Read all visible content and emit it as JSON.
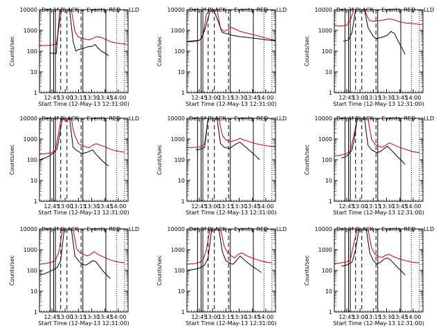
{
  "figure": {
    "x_tick_labels": [
      "12:45",
      "13:00",
      "13:15",
      "13:30",
      "13:45",
      "14:00"
    ],
    "y_tick_labels": [
      "1",
      "10",
      "100",
      "1000",
      "10000"
    ]
  },
  "chart_data": [
    {
      "type": "line",
      "title": "Det 1f BLACK = Events, RED = LLD",
      "xlabel": "Start Time (12-May-13 12:31:00)",
      "ylabel": "Counts/sec",
      "y_scale": "log",
      "ylim": [
        1,
        10000
      ],
      "xlim_minutes_after_start": [
        0,
        100
      ],
      "grid": false,
      "series": [
        {
          "name": "Events",
          "color": "#000000",
          "x": [
            12,
            19,
            23,
            26,
            28,
            30,
            34,
            38,
            41,
            44,
            48,
            52,
            56,
            58,
            60,
            63,
            65,
            67,
            70,
            72,
            75,
            78
          ],
          "y": [
            80,
            78,
            10000,
            10000,
            10000,
            10000,
            10000,
            300,
            100,
            120,
            130,
            150,
            170,
            165,
            180,
            210,
            160,
            130,
            100,
            90,
            75,
            60
          ]
        },
        {
          "name": "LLD",
          "color": "#cc0000",
          "x": [
            0,
            10,
            19,
            20,
            25,
            27,
            29,
            32,
            36,
            40,
            44,
            48,
            52,
            56,
            60,
            64,
            68,
            72,
            76,
            80,
            86,
            92,
            98
          ],
          "y": [
            180,
            190,
            210,
            400,
            10000,
            10000,
            10000,
            10000,
            10000,
            900,
            480,
            420,
            380,
            350,
            400,
            500,
            480,
            420,
            350,
            290,
            250,
            230,
            220
          ]
        }
      ]
    },
    {
      "type": "line",
      "title": "Det 2f BLACK = Events, RED = LLD",
      "xlabel": "Start Time (12-May-13 12:31:00)",
      "ylabel": "Counts/sec",
      "y_scale": "log",
      "ylim": [
        1,
        10000
      ],
      "xlim_minutes_after_start": [
        0,
        100
      ],
      "grid": false,
      "series": [
        {
          "name": "Events",
          "color": "#000000",
          "x": [
            0,
            10,
            14,
            16,
            20,
            26,
            30,
            35,
            40,
            50,
            60,
            70,
            80,
            90,
            100
          ],
          "y": [
            300,
            320,
            340,
            400,
            1000,
            8000,
            10000,
            3000,
            800,
            600,
            500,
            450,
            400,
            350,
            320
          ]
        },
        {
          "name": "LLD",
          "color": "#cc0000",
          "x": [
            0,
            10,
            14,
            18,
            22,
            26,
            30,
            34,
            38,
            42,
            46,
            50,
            54,
            60,
            70,
            80,
            90,
            100
          ],
          "y": [
            280,
            300,
            330,
            500,
            6000,
            10000,
            10000,
            10000,
            1200,
            900,
            1100,
            1400,
            1200,
            900,
            700,
            550,
            420,
            330
          ]
        }
      ]
    },
    {
      "type": "line",
      "title": "Det 3f BLACK = Events, RED = LLD",
      "xlabel": "Start Time (12-May-13 12:31:00)",
      "ylabel": "Counts/sec",
      "y_scale": "log",
      "ylim": [
        1,
        10000
      ],
      "xlim_minutes_after_start": [
        0,
        100
      ],
      "grid": false,
      "series": [
        {
          "name": "Events",
          "color": "#000000",
          "x": [
            10,
            16,
            20,
            24,
            26,
            30,
            34,
            38,
            40,
            44,
            48,
            52,
            56,
            60,
            64,
            68,
            72,
            76,
            80
          ],
          "y": [
            300,
            350,
            800,
            10000,
            10000,
            10000,
            10000,
            1400,
            1000,
            500,
            400,
            450,
            500,
            600,
            900,
            700,
            300,
            150,
            70
          ]
        },
        {
          "name": "LLD",
          "color": "#cc0000",
          "x": [
            0,
            8,
            14,
            18,
            22,
            26,
            30,
            34,
            38,
            40,
            44,
            50,
            56,
            62,
            68,
            74,
            80,
            90,
            98
          ],
          "y": [
            1700,
            1600,
            1800,
            3000,
            10000,
            10000,
            10000,
            10000,
            4000,
            3000,
            2800,
            2900,
            3200,
            3600,
            3200,
            2600,
            2300,
            2100,
            1900
          ]
        }
      ]
    },
    {
      "type": "line",
      "title": "Det 4f BLACK = Events, RED = LLD",
      "xlabel": "Start Time (12-May-13 12:31:00)",
      "ylabel": "Counts/sec",
      "y_scale": "log",
      "ylim": [
        1,
        10000
      ],
      "xlim_minutes_after_start": [
        0,
        100
      ],
      "grid": false,
      "series": [
        {
          "name": "Events",
          "color": "#000000",
          "x": [
            0,
            6,
            12,
            16,
            18,
            20,
            26,
            30,
            34,
            38,
            42,
            48,
            54,
            60,
            64,
            68,
            72,
            78
          ],
          "y": [
            100,
            120,
            160,
            220,
            260,
            350,
            10000,
            10000,
            10000,
            400,
            280,
            200,
            230,
            300,
            180,
            120,
            80,
            50
          ]
        },
        {
          "name": "LLD",
          "color": "#cc0000",
          "x": [
            0,
            8,
            14,
            18,
            22,
            24,
            26,
            28,
            30,
            32,
            34,
            36,
            38,
            40,
            44,
            48,
            52,
            56,
            60,
            64,
            68,
            74,
            80,
            88,
            96
          ],
          "y": [
            180,
            200,
            220,
            280,
            2500,
            8000,
            10000,
            9000,
            7000,
            8000,
            10000,
            10000,
            3000,
            1500,
            600,
            500,
            420,
            380,
            500,
            600,
            520,
            420,
            320,
            260,
            230
          ]
        }
      ]
    },
    {
      "type": "line",
      "title": "Det 5f BLACK = Events, RED = LLD",
      "xlabel": "Start Time (12-May-13 12:31:00)",
      "ylabel": "Counts/sec",
      "y_scale": "log",
      "ylim": [
        1,
        10000
      ],
      "xlim_minutes_after_start": [
        0,
        100
      ],
      "grid": false,
      "series": [
        {
          "name": "Events",
          "color": "#000000",
          "x": [
            10,
            16,
            20,
            24,
            26,
            30,
            34,
            38,
            42,
            48,
            52,
            56,
            60,
            64,
            70,
            76,
            82
          ],
          "y": [
            300,
            320,
            400,
            10000,
            10000,
            10000,
            10000,
            600,
            400,
            350,
            450,
            600,
            700,
            500,
            300,
            180,
            100
          ]
        },
        {
          "name": "LLD",
          "color": "#cc0000",
          "x": [
            0,
            10,
            16,
            20,
            24,
            28,
            32,
            36,
            40,
            44,
            50,
            56,
            60,
            64,
            70,
            78,
            86,
            94,
            100
          ],
          "y": [
            380,
            400,
            420,
            600,
            10000,
            10000,
            10000,
            10000,
            1500,
            900,
            750,
            900,
            1100,
            900,
            750,
            600,
            500,
            450,
            430
          ]
        }
      ]
    },
    {
      "type": "line",
      "title": "Det 6f BLACK = Events, RED = LLD",
      "xlabel": "Start Time (12-May-13 12:31:00)",
      "ylabel": "Counts/sec",
      "y_scale": "log",
      "ylim": [
        1,
        10000
      ],
      "xlim_minutes_after_start": [
        0,
        100
      ],
      "grid": false,
      "series": [
        {
          "name": "Events",
          "color": "#000000",
          "x": [
            8,
            14,
            20,
            22,
            26,
            30,
            34,
            38,
            42,
            48,
            52,
            56,
            60,
            64,
            68,
            72,
            76,
            80
          ],
          "y": [
            120,
            150,
            300,
            800,
            10000,
            10000,
            10000,
            500,
            300,
            220,
            250,
            350,
            450,
            300,
            200,
            130,
            90,
            60
          ]
        },
        {
          "name": "LLD",
          "color": "#cc0000",
          "x": [
            0,
            8,
            14,
            18,
            22,
            26,
            30,
            34,
            38,
            42,
            46,
            50,
            54,
            58,
            62,
            66,
            72,
            80,
            88,
            96
          ],
          "y": [
            150,
            170,
            200,
            260,
            1500,
            10000,
            10000,
            10000,
            10000,
            1000,
            550,
            450,
            400,
            500,
            650,
            550,
            420,
            320,
            250,
            220
          ]
        }
      ]
    },
    {
      "type": "line",
      "title": "Det 7f BLACK = Events, RED = LLD",
      "xlabel": "Start Time (12-May-13 12:31:00)",
      "ylabel": "Counts/sec",
      "y_scale": "log",
      "ylim": [
        1,
        10000
      ],
      "xlim_minutes_after_start": [
        0,
        100
      ],
      "grid": false,
      "series": [
        {
          "name": "Events",
          "color": "#000000",
          "x": [
            0,
            6,
            12,
            16,
            20,
            24,
            28,
            32,
            36,
            40,
            44,
            48,
            52,
            56,
            60,
            64,
            68,
            72,
            76,
            80
          ],
          "y": [
            60,
            70,
            90,
            110,
            140,
            300,
            10000,
            10000,
            10000,
            500,
            300,
            200,
            180,
            220,
            300,
            260,
            150,
            90,
            60,
            40
          ]
        },
        {
          "name": "LLD",
          "color": "#cc0000",
          "x": [
            0,
            8,
            14,
            18,
            22,
            26,
            30,
            34,
            38,
            42,
            46,
            50,
            54,
            58,
            62,
            66,
            72,
            80,
            88,
            96
          ],
          "y": [
            200,
            220,
            250,
            300,
            800,
            10000,
            10000,
            10000,
            10000,
            1100,
            700,
            600,
            500,
            600,
            800,
            600,
            450,
            320,
            260,
            230
          ]
        }
      ]
    },
    {
      "type": "line",
      "title": "Det 8f BLACK = Events, RED = LLD",
      "xlabel": "Start Time (12-May-13 12:31:00)",
      "ylabel": "Counts/sec",
      "y_scale": "log",
      "ylim": [
        1,
        10000
      ],
      "xlim_minutes_after_start": [
        0,
        100
      ],
      "grid": false,
      "series": [
        {
          "name": "Events",
          "color": "#000000",
          "x": [
            0,
            6,
            12,
            16,
            20,
            24,
            28,
            32,
            36,
            40,
            44,
            48,
            52,
            56,
            60,
            64,
            68,
            72,
            78,
            84
          ],
          "y": [
            100,
            110,
            120,
            140,
            180,
            400,
            10000,
            10000,
            10000,
            800,
            300,
            220,
            200,
            300,
            500,
            350,
            250,
            180,
            120,
            80
          ]
        },
        {
          "name": "LLD",
          "color": "#cc0000",
          "x": [
            0,
            8,
            14,
            18,
            22,
            26,
            30,
            34,
            38,
            42,
            46,
            50,
            54,
            58,
            62,
            66,
            72,
            80,
            88,
            96
          ],
          "y": [
            200,
            210,
            240,
            300,
            1000,
            10000,
            10000,
            10000,
            10000,
            1500,
            700,
            500,
            400,
            600,
            700,
            550,
            420,
            320,
            260,
            230
          ]
        }
      ]
    },
    {
      "type": "line",
      "title": "Det 9f BLACK = Events, RED = LLD",
      "xlabel": "Start Time (12-May-13 12:31:00)",
      "ylabel": "Counts/sec",
      "y_scale": "log",
      "ylim": [
        1,
        10000
      ],
      "xlim_minutes_after_start": [
        0,
        100
      ],
      "grid": false,
      "series": [
        {
          "name": "Events",
          "color": "#000000",
          "x": [
            8,
            14,
            20,
            24,
            28,
            32,
            36,
            40,
            44,
            48,
            52,
            56,
            60,
            64,
            68,
            72,
            76,
            80
          ],
          "y": [
            160,
            180,
            250,
            1000,
            10000,
            10000,
            10000,
            700,
            300,
            200,
            250,
            350,
            400,
            300,
            200,
            130,
            90,
            60
          ]
        },
        {
          "name": "LLD",
          "color": "#cc0000",
          "x": [
            0,
            8,
            14,
            18,
            22,
            26,
            30,
            34,
            38,
            42,
            46,
            50,
            54,
            58,
            62,
            66,
            72,
            80,
            88,
            96
          ],
          "y": [
            220,
            230,
            260,
            320,
            2000,
            10000,
            10000,
            10000,
            10000,
            1200,
            600,
            450,
            420,
            550,
            600,
            480,
            380,
            300,
            250,
            230
          ]
        }
      ]
    }
  ]
}
